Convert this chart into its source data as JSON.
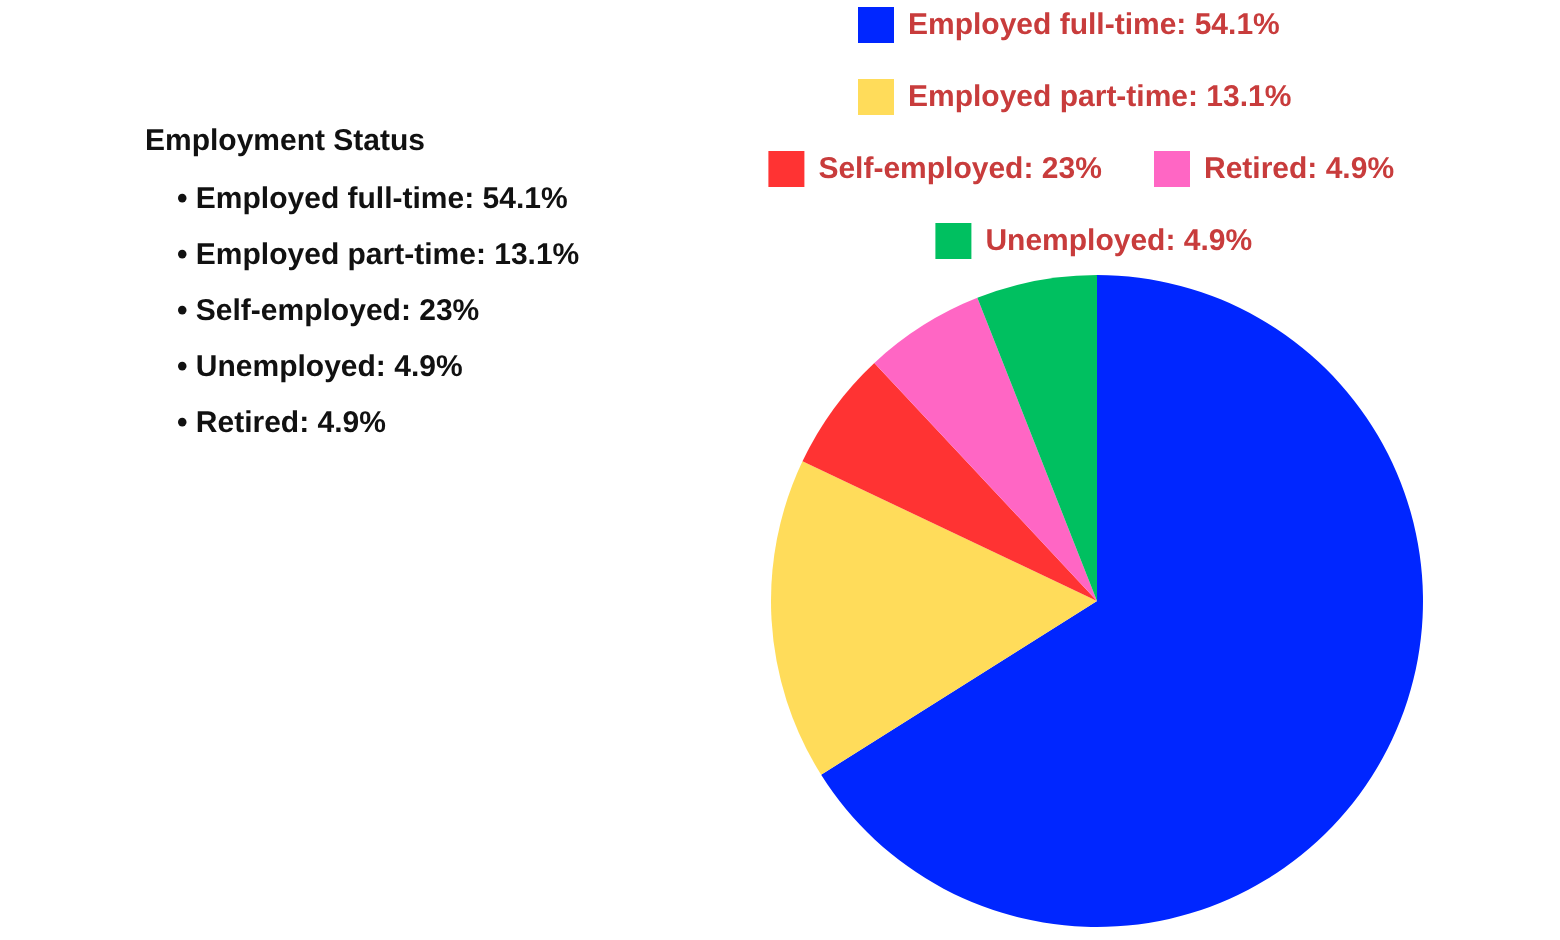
{
  "chart_data": {
    "type": "pie",
    "title": "Employment Status",
    "annotations": [
      "•  Employed full-time: 54.1%",
      "•  Employed part-time: 13.1%",
      "•  Self-employed: 23%",
      "•  Unemployed: 4.9%",
      "•  Retired: 4.9%"
    ],
    "categories": [
      "Employed full-time: 54.1%",
      "Employed part-time: 13.1%",
      "Self-employed: 23%",
      "Retired: 4.9%",
      "Unemployed: 4.9%"
    ],
    "values": [
      54.1,
      13.1,
      4.9,
      4.9,
      4.9
    ],
    "colors": [
      "#0026ff",
      "#ffdc5a",
      "#ff3333",
      "#ff66c4",
      "#00c060"
    ],
    "legend": "top"
  }
}
